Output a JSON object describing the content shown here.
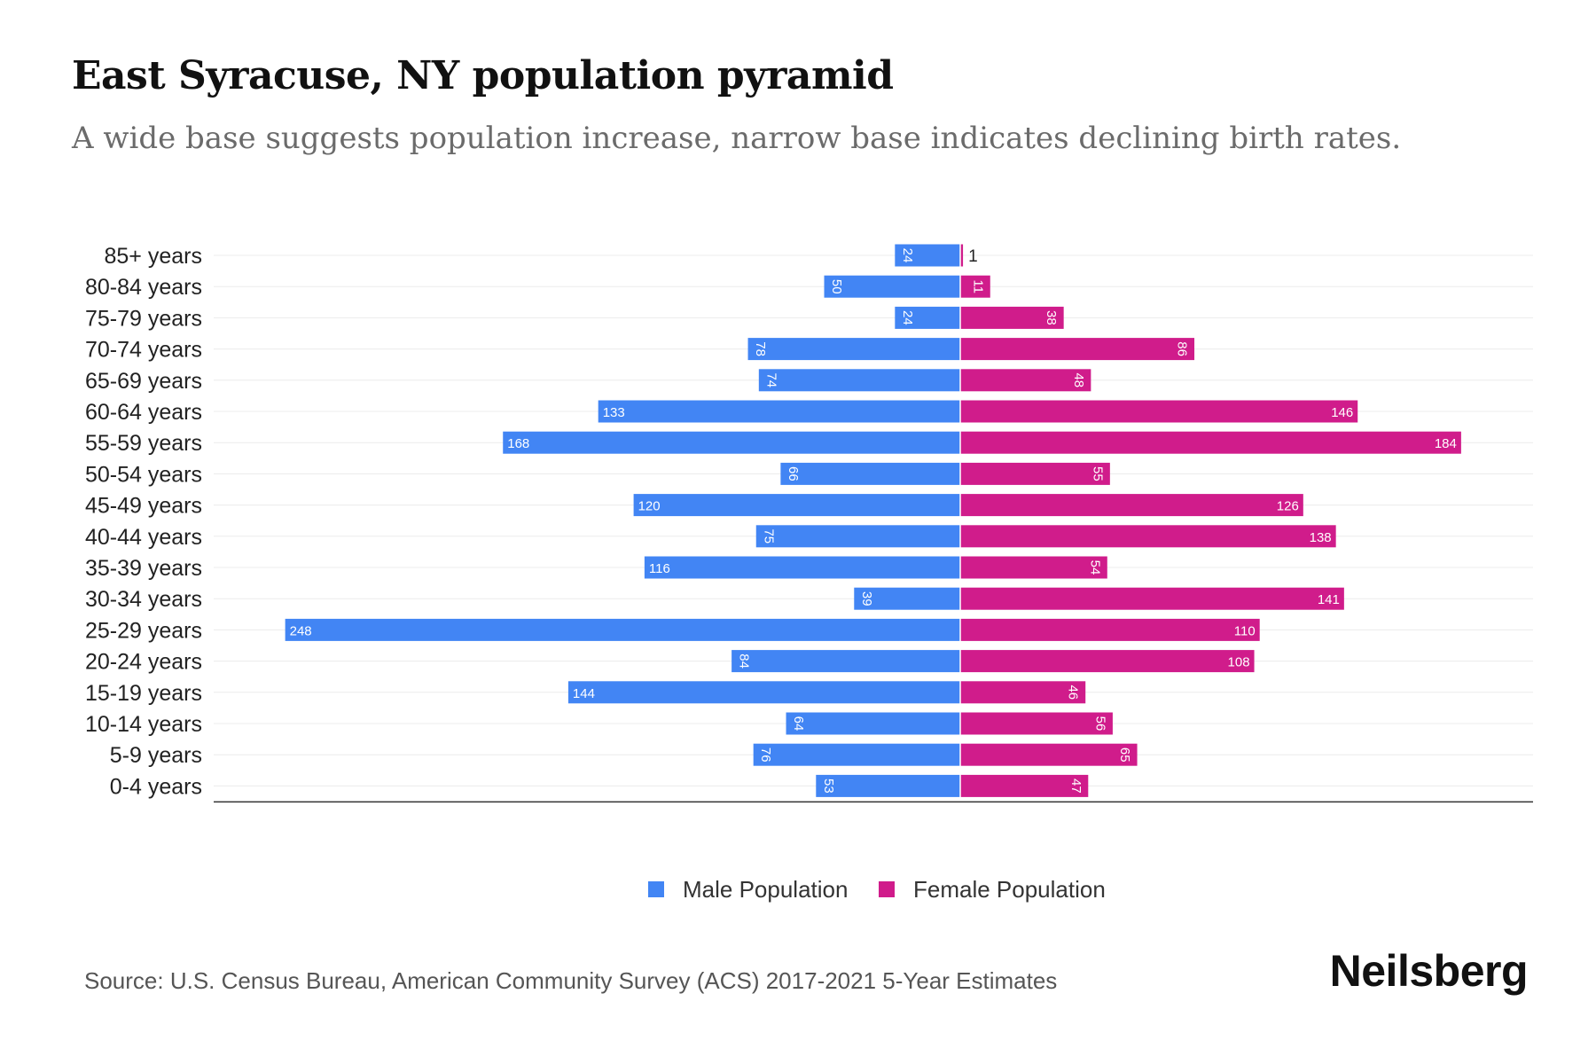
{
  "chart_data": {
    "type": "bar",
    "orientation": "horizontal-pyramid",
    "title": "East Syracuse, NY population pyramid",
    "subtitle": "A wide base suggests population increase, narrow base indicates declining birth rates.",
    "categories": [
      "85+ years",
      "80-84 years",
      "75-79 years",
      "70-74 years",
      "65-69 years",
      "60-64 years",
      "55-59 years",
      "50-54 years",
      "45-49 years",
      "40-44 years",
      "35-39 years",
      "30-34 years",
      "25-29 years",
      "20-24 years",
      "15-19 years",
      "10-14 years",
      "5-9 years",
      "0-4 years"
    ],
    "series": [
      {
        "name": "Male Population",
        "color": "#4285f4",
        "values": [
          24,
          50,
          24,
          78,
          74,
          133,
          168,
          66,
          120,
          75,
          116,
          39,
          248,
          84,
          144,
          64,
          76,
          53
        ]
      },
      {
        "name": "Female Population",
        "color": "#d01c8b",
        "values": [
          1,
          11,
          38,
          86,
          48,
          146,
          184,
          55,
          126,
          138,
          54,
          141,
          110,
          108,
          46,
          56,
          65,
          47
        ]
      }
    ],
    "xlim": [
      -270,
      210
    ],
    "grid": true,
    "legend": "bottom-center"
  },
  "footer": {
    "source": "Source: U.S. Census Bureau, American Community Survey (ACS) 2017-2021 5-Year Estimates",
    "brand": "Neilsberg"
  }
}
